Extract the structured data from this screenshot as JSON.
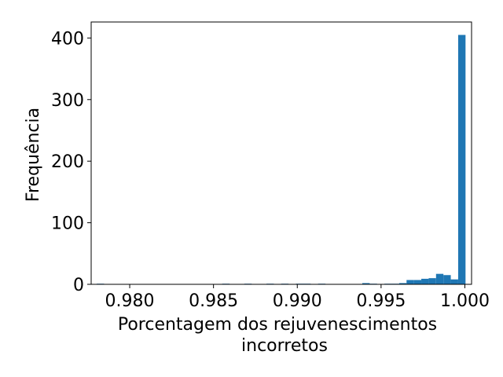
{
  "chart_data": {
    "type": "bar",
    "subtype": "histogram",
    "title": "",
    "xlabel_lines": [
      "Porcentagem dos rejuvenescimentos",
      "incorretos"
    ],
    "ylabel": "Frequência",
    "xlim": [
      0.9777,
      1.0004
    ],
    "ylim": [
      0,
      426
    ],
    "grid": false,
    "color": "#1f77b4",
    "bin_width": 0.00044,
    "x_ticks": [
      {
        "value": 0.98,
        "label": "0.980"
      },
      {
        "value": 0.985,
        "label": "0.985"
      },
      {
        "value": 0.99,
        "label": "0.990"
      },
      {
        "value": 0.995,
        "label": "0.995"
      },
      {
        "value": 1.0,
        "label": "1.000"
      }
    ],
    "y_ticks": [
      {
        "value": 0,
        "label": "0"
      },
      {
        "value": 100,
        "label": "100"
      },
      {
        "value": 200,
        "label": "200"
      },
      {
        "value": 300,
        "label": "300"
      },
      {
        "value": 400,
        "label": "400"
      }
    ],
    "bins": [
      {
        "x": 0.97825,
        "count": 1
      },
      {
        "x": 0.98574,
        "count": 1
      },
      {
        "x": 0.98706,
        "count": 1
      },
      {
        "x": 0.98838,
        "count": 1
      },
      {
        "x": 0.98926,
        "count": 1
      },
      {
        "x": 0.99014,
        "count": 1
      },
      {
        "x": 0.99058,
        "count": 1
      },
      {
        "x": 0.99146,
        "count": 1
      },
      {
        "x": 0.9941,
        "count": 2
      },
      {
        "x": 0.99454,
        "count": 1
      },
      {
        "x": 0.99542,
        "count": 1
      },
      {
        "x": 0.99586,
        "count": 1
      },
      {
        "x": 0.9963,
        "count": 2
      },
      {
        "x": 0.99674,
        "count": 7
      },
      {
        "x": 0.99718,
        "count": 7
      },
      {
        "x": 0.99762,
        "count": 9
      },
      {
        "x": 0.99806,
        "count": 10
      },
      {
        "x": 0.9985,
        "count": 17
      },
      {
        "x": 0.99894,
        "count": 15
      },
      {
        "x": 0.99938,
        "count": 8
      },
      {
        "x": 0.99982,
        "count": 405
      }
    ]
  }
}
